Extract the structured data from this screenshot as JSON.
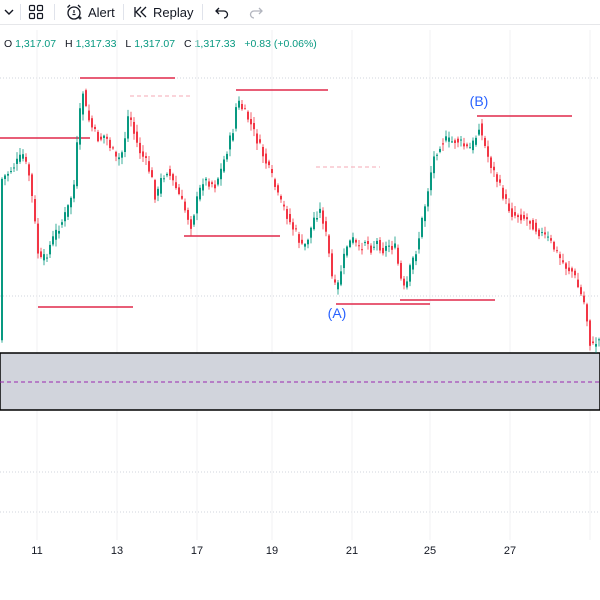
{
  "toolbar": {
    "alert_label": "Alert",
    "replay_label": "Replay",
    "icons": [
      "dropdown-chevron-icon",
      "layouts-grid-icon",
      "alarm-clock-icon",
      "replay-icon",
      "undo-icon",
      "redo-icon"
    ]
  },
  "ohlc": {
    "o_key": "O",
    "o_val": "1,317.07",
    "h_key": "H",
    "h_val": "1,317.33",
    "l_key": "L",
    "l_val": "1,317.07",
    "c_key": "C",
    "c_val": "1,317.33",
    "change": "+0.83 (+0.06%)",
    "color": "#089981"
  },
  "labels": {
    "a": "(A)",
    "b": "(B)"
  },
  "colors": {
    "up": "#089981",
    "down": "#f23645",
    "level": "#e0294a",
    "zone_fill": "#d1d4dc",
    "zone_border": "#000000",
    "mid_line": "#9c27b0",
    "label_blue": "#2962ff"
  },
  "chart_data": {
    "type": "candlestick",
    "x_tick_labels": [
      "11",
      "13",
      "17",
      "19",
      "21",
      "25",
      "27"
    ],
    "grid": true,
    "annotations": [
      "(A)",
      "(B)"
    ]
  }
}
